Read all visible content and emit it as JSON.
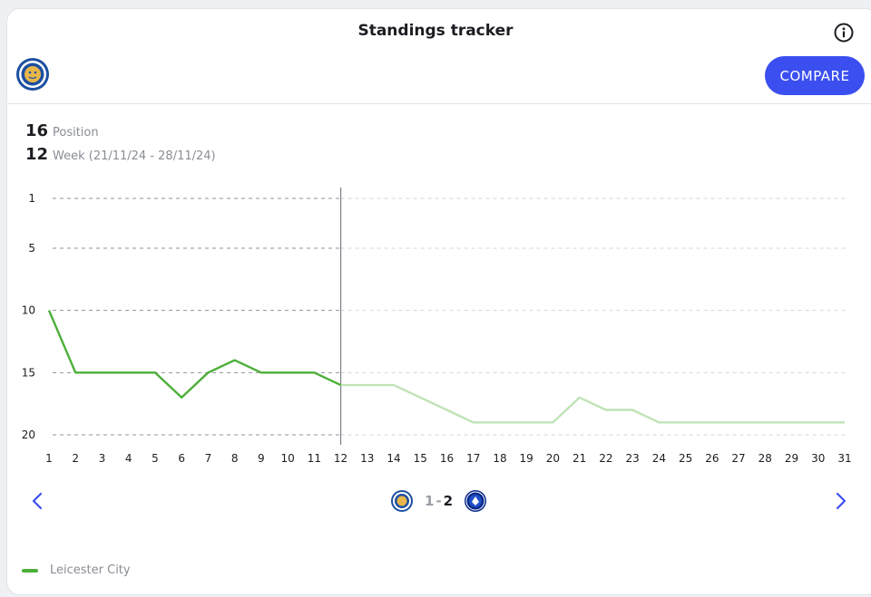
{
  "header": {
    "title": "Standings tracker",
    "compare_label": "COMPARE"
  },
  "stats": {
    "position_value": "16",
    "position_label": "Position",
    "week_value": "12",
    "week_label": "Week (21/11/24 - 28/11/24)"
  },
  "match": {
    "home_score": "1",
    "separator": "-",
    "away_score": "2"
  },
  "legend": {
    "team": "Leicester City"
  },
  "colors": {
    "accent": "#3b4ff0",
    "line": "#4caf39",
    "line_projected": "#bfe3b6"
  },
  "chart_data": {
    "type": "line",
    "title": "",
    "xlabel": "",
    "ylabel": "",
    "x": [
      1,
      2,
      3,
      4,
      5,
      6,
      7,
      8,
      9,
      10,
      11,
      12,
      13,
      14,
      15,
      16,
      17,
      18,
      19,
      20,
      21,
      22,
      23,
      24,
      25,
      26,
      27,
      28,
      29,
      30,
      31
    ],
    "xlim": [
      1,
      31
    ],
    "ylim": [
      1,
      20
    ],
    "y_inverted": true,
    "y_ticks": [
      1,
      5,
      10,
      15,
      20
    ],
    "current_week": 12,
    "grid": "horizontal dashed",
    "series": [
      {
        "name": "Leicester City",
        "values": [
          10,
          15,
          15,
          15,
          15,
          17,
          15,
          14,
          15,
          15,
          15,
          16,
          16,
          16,
          17,
          18,
          19,
          19,
          19,
          19,
          17,
          18,
          18,
          19,
          19,
          19,
          19,
          19,
          19,
          19,
          19
        ]
      }
    ]
  }
}
